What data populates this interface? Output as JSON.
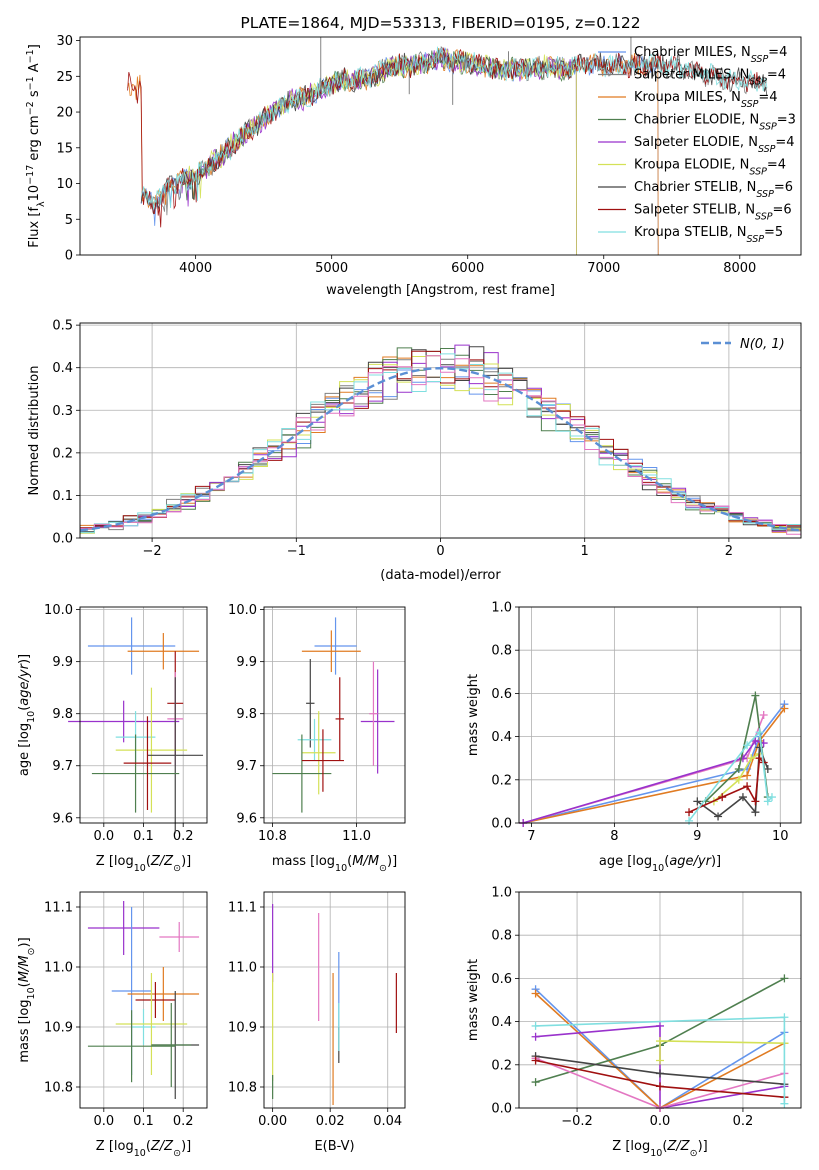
{
  "colors": {
    "chabrier_miles": "#6495ed",
    "salpeter_miles": "#808080",
    "kroupa_miles": "#e07b22",
    "chabrier_elodie": "#4f7f4f",
    "salpeter_elodie": "#9932cc",
    "kroupa_elodie": "#d4e157",
    "chabrier_stelib": "#444444",
    "salpeter_stelib": "#a01010",
    "kroupa_stelib": "#80dfe0",
    "pink": "#e377c2",
    "normal_curve": "#5b8fd4"
  },
  "chart_data": [
    {
      "id": "spectrum",
      "type": "line",
      "title": "PLATE=1864, MJD=53313, FIBERID=0195, z=0.122",
      "xlabel": "wavelength [Angstrom, rest frame]",
      "ylabel": "Flux [f",
      "xlim": [
        3150,
        8450
      ],
      "ylim": [
        0,
        30.5
      ],
      "xticks": [
        4000,
        5000,
        6000,
        7000,
        8000
      ],
      "yticks": [
        0,
        5,
        10,
        15,
        20,
        25,
        30
      ],
      "x_range": [
        3600,
        8200
      ],
      "continuum": [
        [
          3600,
          8.0
        ],
        [
          3700,
          7.5
        ],
        [
          3800,
          9.5
        ],
        [
          3900,
          10.5
        ],
        [
          4000,
          11.0
        ],
        [
          4100,
          12.5
        ],
        [
          4200,
          14.0
        ],
        [
          4300,
          16.0
        ],
        [
          4400,
          17.5
        ],
        [
          4500,
          19.0
        ],
        [
          4600,
          20.5
        ],
        [
          4700,
          21.5
        ],
        [
          4800,
          22.0
        ],
        [
          4900,
          23.0
        ],
        [
          5000,
          24.0
        ],
        [
          5100,
          24.5
        ],
        [
          5200,
          24.5
        ],
        [
          5300,
          25.0
        ],
        [
          5400,
          26.0
        ],
        [
          5500,
          26.5
        ],
        [
          5600,
          26.5
        ],
        [
          5700,
          27.0
        ],
        [
          5800,
          27.5
        ],
        [
          5900,
          27.0
        ],
        [
          6000,
          27.0
        ],
        [
          6100,
          26.5
        ],
        [
          6200,
          26.0
        ],
        [
          6300,
          26.0
        ],
        [
          6400,
          26.0
        ],
        [
          6500,
          26.0
        ],
        [
          6600,
          26.5
        ],
        [
          6700,
          26.0
        ],
        [
          6800,
          26.5
        ],
        [
          6900,
          27.0
        ],
        [
          7000,
          26.5
        ],
        [
          7100,
          26.5
        ],
        [
          7200,
          26.5
        ],
        [
          7300,
          26.5
        ],
        [
          7400,
          26.5
        ],
        [
          7500,
          26.5
        ],
        [
          7600,
          26.0
        ],
        [
          7700,
          25.5
        ],
        [
          7800,
          25.0
        ],
        [
          7900,
          24.5
        ],
        [
          8000,
          24.5
        ],
        [
          8100,
          24.0
        ],
        [
          8200,
          24.0
        ]
      ],
      "series": [
        {
          "name": "Chabrier MILES, N",
          "ssp": "=4",
          "color": "#6495ed",
          "xmin": 3600,
          "xmax": 7400
        },
        {
          "name": "Salpeter MILES, N",
          "ssp": "=4",
          "color": "#808080",
          "xmin": 3600,
          "xmax": 8200
        },
        {
          "name": "Kroupa MILES, N",
          "ssp": "=4",
          "color": "#e07b22",
          "xmin": 3500,
          "xmax": 7400
        },
        {
          "name": "Chabrier ELODIE, N",
          "ssp": "=3",
          "color": "#4f7f4f",
          "xmin": 3900,
          "xmax": 6800
        },
        {
          "name": "Salpeter ELODIE, N",
          "ssp": "=4",
          "color": "#9932cc",
          "xmin": 3900,
          "xmax": 6800
        },
        {
          "name": "Kroupa ELODIE, N",
          "ssp": "=4",
          "color": "#d4e157",
          "xmin": 3900,
          "xmax": 6800
        },
        {
          "name": "Chabrier STELIB, N",
          "ssp": "=6",
          "color": "#444444",
          "xmin": 3600,
          "xmax": 8200
        },
        {
          "name": "Salpeter STELIB, N",
          "ssp": "=6",
          "color": "#a01010",
          "xmin": 3500,
          "xmax": 8200
        },
        {
          "name": "Kroupa STELIB, N",
          "ssp": "=5",
          "color": "#80dfe0",
          "xmin": 3600,
          "xmax": 8200
        }
      ],
      "spikes": [
        [
          4920,
          30.5
        ],
        [
          5570,
          22.5
        ],
        [
          5890,
          21.0
        ],
        [
          6300,
          28.5
        ],
        [
          6560,
          24.5
        ],
        [
          7200,
          30.5
        ]
      ]
    },
    {
      "id": "residuals",
      "type": "histogram",
      "xlabel": "(data-model)/error",
      "ylabel": "Normed distribution",
      "xlim": [
        -2.5,
        2.5
      ],
      "ylim": [
        0,
        0.505
      ],
      "xticks": [
        -2,
        -1,
        0,
        1,
        2
      ],
      "yticks": [
        0,
        0.1,
        0.2,
        0.3,
        0.4,
        0.5
      ],
      "bin_width": 0.1,
      "normal_label": "N(0, 1)"
    },
    {
      "id": "age_vs_Z",
      "type": "errorbar",
      "xlabel": "Z [log",
      "ylabel": "age  [log",
      "xlim": [
        -0.06,
        0.26
      ],
      "ylim": [
        9.59,
        10.005
      ],
      "xticks": [
        0,
        0.1,
        0.2
      ],
      "yticks": [
        9.6,
        9.7,
        9.8,
        9.9,
        10.0
      ],
      "points": [
        {
          "x": 0.07,
          "y": 9.93,
          "xerr": 0.11,
          "yerr": 0.055,
          "color": "#6495ed"
        },
        {
          "x": 0.15,
          "y": 9.92,
          "xerr": 0.09,
          "yerr": 0.035,
          "color": "#e07b22"
        },
        {
          "x": 0.18,
          "y": 9.82,
          "xerr": 0.02,
          "yerr": 0.1,
          "color": "#a01010"
        },
        {
          "x": 0.18,
          "y": 9.79,
          "xerr": 0.02,
          "yerr": 0.09,
          "color": "#e377c2"
        },
        {
          "x": 0.05,
          "y": 9.785,
          "xerr": 0.14,
          "yerr": 0.04,
          "color": "#9932cc"
        },
        {
          "x": 0.08,
          "y": 9.755,
          "xerr": 0.05,
          "yerr": 0.05,
          "color": "#80dfe0"
        },
        {
          "x": 0.12,
          "y": 9.73,
          "xerr": 0.09,
          "yerr": 0.12,
          "color": "#d4e157"
        },
        {
          "x": 0.18,
          "y": 9.72,
          "xerr": 0.07,
          "yerr": 0.15,
          "color": "#444444"
        },
        {
          "x": 0.08,
          "y": 9.685,
          "xerr": 0.11,
          "yerr": 0.075,
          "color": "#4f7f4f"
        },
        {
          "x": 0.11,
          "y": 9.705,
          "xerr": 0.06,
          "yerr": 0.09,
          "color": "#a01010"
        }
      ]
    },
    {
      "id": "age_vs_mass",
      "type": "errorbar",
      "xlabel": "mass [log",
      "ylabel": "",
      "xlim": [
        10.78,
        11.115
      ],
      "ylim": [
        9.59,
        10.005
      ],
      "xticks": [
        10.8,
        11.0
      ],
      "yticks": [
        9.6,
        9.7,
        9.8,
        9.9,
        10.0
      ],
      "points": [
        {
          "x": 10.95,
          "y": 9.93,
          "xerr": 0.05,
          "yerr": 0.055,
          "color": "#6495ed"
        },
        {
          "x": 10.94,
          "y": 9.92,
          "xerr": 0.07,
          "yerr": 0.04,
          "color": "#e07b22"
        },
        {
          "x": 10.89,
          "y": 9.82,
          "xerr": 0.01,
          "yerr": 0.085,
          "color": "#444444"
        },
        {
          "x": 11.05,
          "y": 9.785,
          "xerr": 0.04,
          "yerr": 0.1,
          "color": "#9932cc"
        },
        {
          "x": 10.96,
          "y": 9.79,
          "xerr": 0.01,
          "yerr": 0.08,
          "color": "#a01010"
        },
        {
          "x": 11.04,
          "y": 9.8,
          "xerr": 0.01,
          "yerr": 0.1,
          "color": "#e377c2"
        },
        {
          "x": 10.9,
          "y": 9.75,
          "xerr": 0.04,
          "yerr": 0.04,
          "color": "#80dfe0"
        },
        {
          "x": 10.91,
          "y": 9.725,
          "xerr": 0.04,
          "yerr": 0.08,
          "color": "#d4e157"
        },
        {
          "x": 10.87,
          "y": 9.685,
          "xerr": 0.07,
          "yerr": 0.075,
          "color": "#4f7f4f"
        },
        {
          "x": 10.92,
          "y": 9.71,
          "xerr": 0.05,
          "yerr": 0.06,
          "color": "#a01010"
        }
      ]
    },
    {
      "id": "weight_vs_age",
      "type": "line",
      "xlabel": "age  [log",
      "ylabel": "mass weight",
      "xlim": [
        6.85,
        10.25
      ],
      "ylim": [
        0,
        1.0
      ],
      "xticks": [
        7,
        8,
        9,
        10
      ],
      "yticks": [
        0,
        0.2,
        0.4,
        0.6,
        0.8,
        1.0
      ],
      "series": [
        {
          "color": "#6495ed",
          "points": [
            [
              6.9,
              0.0
            ],
            [
              9.6,
              0.25
            ],
            [
              9.75,
              0.4
            ],
            [
              10.05,
              0.55
            ]
          ]
        },
        {
          "color": "#e07b22",
          "points": [
            [
              6.9,
              0.0
            ],
            [
              9.6,
              0.22
            ],
            [
              9.75,
              0.38
            ],
            [
              10.05,
              0.53
            ]
          ]
        },
        {
          "color": "#e377c2",
          "points": [
            [
              6.9,
              0.0
            ],
            [
              9.6,
              0.3
            ],
            [
              9.8,
              0.5
            ]
          ]
        },
        {
          "color": "#9932cc",
          "points": [
            [
              6.9,
              0.0
            ],
            [
              9.55,
              0.3
            ],
            [
              9.7,
              0.38
            ],
            [
              9.8,
              0.37
            ]
          ]
        },
        {
          "color": "#4f7f4f",
          "points": [
            [
              9.1,
              0.1
            ],
            [
              9.5,
              0.25
            ],
            [
              9.7,
              0.59
            ],
            [
              9.85,
              0.12
            ]
          ]
        },
        {
          "color": "#d4e157",
          "points": [
            [
              9.2,
              0.1
            ],
            [
              9.5,
              0.2
            ],
            [
              9.65,
              0.3
            ],
            [
              9.75,
              0.32
            ]
          ]
        },
        {
          "color": "#444444",
          "points": [
            [
              9.0,
              0.1
            ],
            [
              9.25,
              0.03
            ],
            [
              9.55,
              0.12
            ],
            [
              9.7,
              0.05
            ],
            [
              9.75,
              0.35
            ],
            [
              9.85,
              0.25
            ]
          ]
        },
        {
          "color": "#a01010",
          "points": [
            [
              8.9,
              0.05
            ],
            [
              9.3,
              0.12
            ],
            [
              9.6,
              0.17
            ],
            [
              9.7,
              0.1
            ],
            [
              9.75,
              0.3
            ],
            [
              9.8,
              0.28
            ]
          ]
        },
        {
          "color": "#80dfe0",
          "points": [
            [
              8.9,
              0.01
            ],
            [
              9.6,
              0.36
            ],
            [
              9.75,
              0.42
            ],
            [
              9.85,
              0.1
            ],
            [
              9.9,
              0.12
            ]
          ]
        }
      ]
    },
    {
      "id": "mass_vs_Z",
      "type": "errorbar",
      "xlabel": "Z [log",
      "ylabel": "mass [log",
      "xlim": [
        -0.06,
        0.26
      ],
      "ylim": [
        10.765,
        11.125
      ],
      "xticks": [
        0,
        0.1,
        0.2
      ],
      "yticks": [
        10.8,
        10.9,
        11.0,
        11.1
      ],
      "points": [
        {
          "x": 0.05,
          "y": 11.065,
          "xerr": 0.09,
          "yerr": 0.045,
          "color": "#9932cc"
        },
        {
          "x": 0.19,
          "y": 11.05,
          "xerr": 0.05,
          "yerr": 0.025,
          "color": "#e377c2"
        },
        {
          "x": 0.07,
          "y": 10.96,
          "xerr": 0.05,
          "yerr": 0.14,
          "color": "#6495ed"
        },
        {
          "x": 0.15,
          "y": 10.955,
          "xerr": 0.09,
          "yerr": 0.045,
          "color": "#e07b22"
        },
        {
          "x": 0.13,
          "y": 10.945,
          "xerr": 0.05,
          "yerr": 0.03,
          "color": "#a01010"
        },
        {
          "x": 0.1,
          "y": 10.9,
          "xerr": 0.03,
          "yerr": 0.03,
          "color": "#80dfe0"
        },
        {
          "x": 0.12,
          "y": 10.905,
          "xerr": 0.09,
          "yerr": 0.085,
          "color": "#d4e157"
        },
        {
          "x": 0.18,
          "y": 10.87,
          "xerr": 0.06,
          "yerr": 0.09,
          "color": "#444444"
        },
        {
          "x": 0.07,
          "y": 10.868,
          "xerr": 0.11,
          "yerr": 0.06,
          "color": "#4f7f4f"
        },
        {
          "x": 0.17,
          "y": 10.87,
          "xerr": 0.05,
          "yerr": 0.07,
          "color": "#4f7f4f"
        }
      ]
    },
    {
      "id": "mass_vs_ebv",
      "type": "errorbar",
      "xlabel": "E(B-V)",
      "ylabel": "",
      "xlim": [
        -0.003,
        0.046
      ],
      "ylim": [
        10.765,
        11.125
      ],
      "xticks": [
        0,
        0.02,
        0.04
      ],
      "yticks": [
        10.8,
        10.9,
        11.0,
        11.1
      ],
      "points": [
        {
          "x": 0.0,
          "y": 11.04,
          "xerr": 0,
          "yerr": 0.065,
          "color": "#9932cc"
        },
        {
          "x": 0.0,
          "y": 10.9,
          "xerr": 0,
          "yerr": 0.09,
          "color": "#d4e157"
        },
        {
          "x": 0.0,
          "y": 10.8,
          "xerr": 0,
          "yerr": 0.02,
          "color": "#4f7f4f"
        },
        {
          "x": 0.016,
          "y": 11.0,
          "xerr": 0,
          "yerr": 0.09,
          "color": "#e377c2"
        },
        {
          "x": 0.021,
          "y": 10.88,
          "xerr": 0,
          "yerr": 0.11,
          "color": "#e07b22"
        },
        {
          "x": 0.023,
          "y": 10.96,
          "xerr": 0,
          "yerr": 0.065,
          "color": "#6495ed"
        },
        {
          "x": 0.023,
          "y": 10.87,
          "xerr": 0,
          "yerr": 0.03,
          "color": "#444444"
        },
        {
          "x": 0.023,
          "y": 10.9,
          "xerr": 0,
          "yerr": 0.04,
          "color": "#80dfe0"
        },
        {
          "x": 0.043,
          "y": 10.94,
          "xerr": 0,
          "yerr": 0.05,
          "color": "#a01010"
        }
      ]
    },
    {
      "id": "weight_vs_Z",
      "type": "line",
      "xlabel": "Z [log",
      "ylabel": "mass weight",
      "xlim": [
        -0.34,
        0.34
      ],
      "ylim": [
        0,
        1.0
      ],
      "xticks": [
        -0.2,
        0.0,
        0.2
      ],
      "yticks": [
        0,
        0.2,
        0.4,
        0.6,
        0.8,
        1.0
      ],
      "series": [
        {
          "color": "#6495ed",
          "points": [
            [
              -0.3,
              0.55
            ],
            [
              0.0,
              0.0
            ],
            [
              0.3,
              0.35
            ]
          ]
        },
        {
          "color": "#e07b22",
          "points": [
            [
              -0.3,
              0.53
            ],
            [
              0.0,
              0.0
            ],
            [
              0.3,
              0.3
            ]
          ]
        },
        {
          "color": "#4f7f4f",
          "points": [
            [
              -0.3,
              0.12
            ],
            [
              0.0,
              0.29
            ],
            [
              0.3,
              0.6
            ]
          ]
        },
        {
          "color": "#9932cc",
          "points": [
            [
              -0.3,
              0.33
            ],
            [
              0.0,
              0.38
            ],
            [
              0.0,
              0.0
            ],
            [
              0.3,
              0.1
            ]
          ]
        },
        {
          "color": "#e377c2",
          "points": [
            [
              -0.3,
              0.23
            ],
            [
              0.0,
              0.0
            ],
            [
              0.3,
              0.16
            ]
          ]
        },
        {
          "color": "#d4e157",
          "points": [
            [
              0.0,
              0.22
            ],
            [
              0.0,
              0.31
            ],
            [
              0.3,
              0.3
            ]
          ]
        },
        {
          "color": "#444444",
          "points": [
            [
              -0.3,
              0.24
            ],
            [
              0.0,
              0.16
            ],
            [
              0.3,
              0.11
            ]
          ]
        },
        {
          "color": "#a01010",
          "points": [
            [
              -0.3,
              0.22
            ],
            [
              0.0,
              0.1
            ],
            [
              0.3,
              0.05
            ]
          ]
        },
        {
          "color": "#80dfe0",
          "points": [
            [
              -0.3,
              0.38
            ],
            [
              0.3,
              0.42
            ],
            [
              0.3,
              0.02
            ]
          ]
        }
      ]
    }
  ]
}
